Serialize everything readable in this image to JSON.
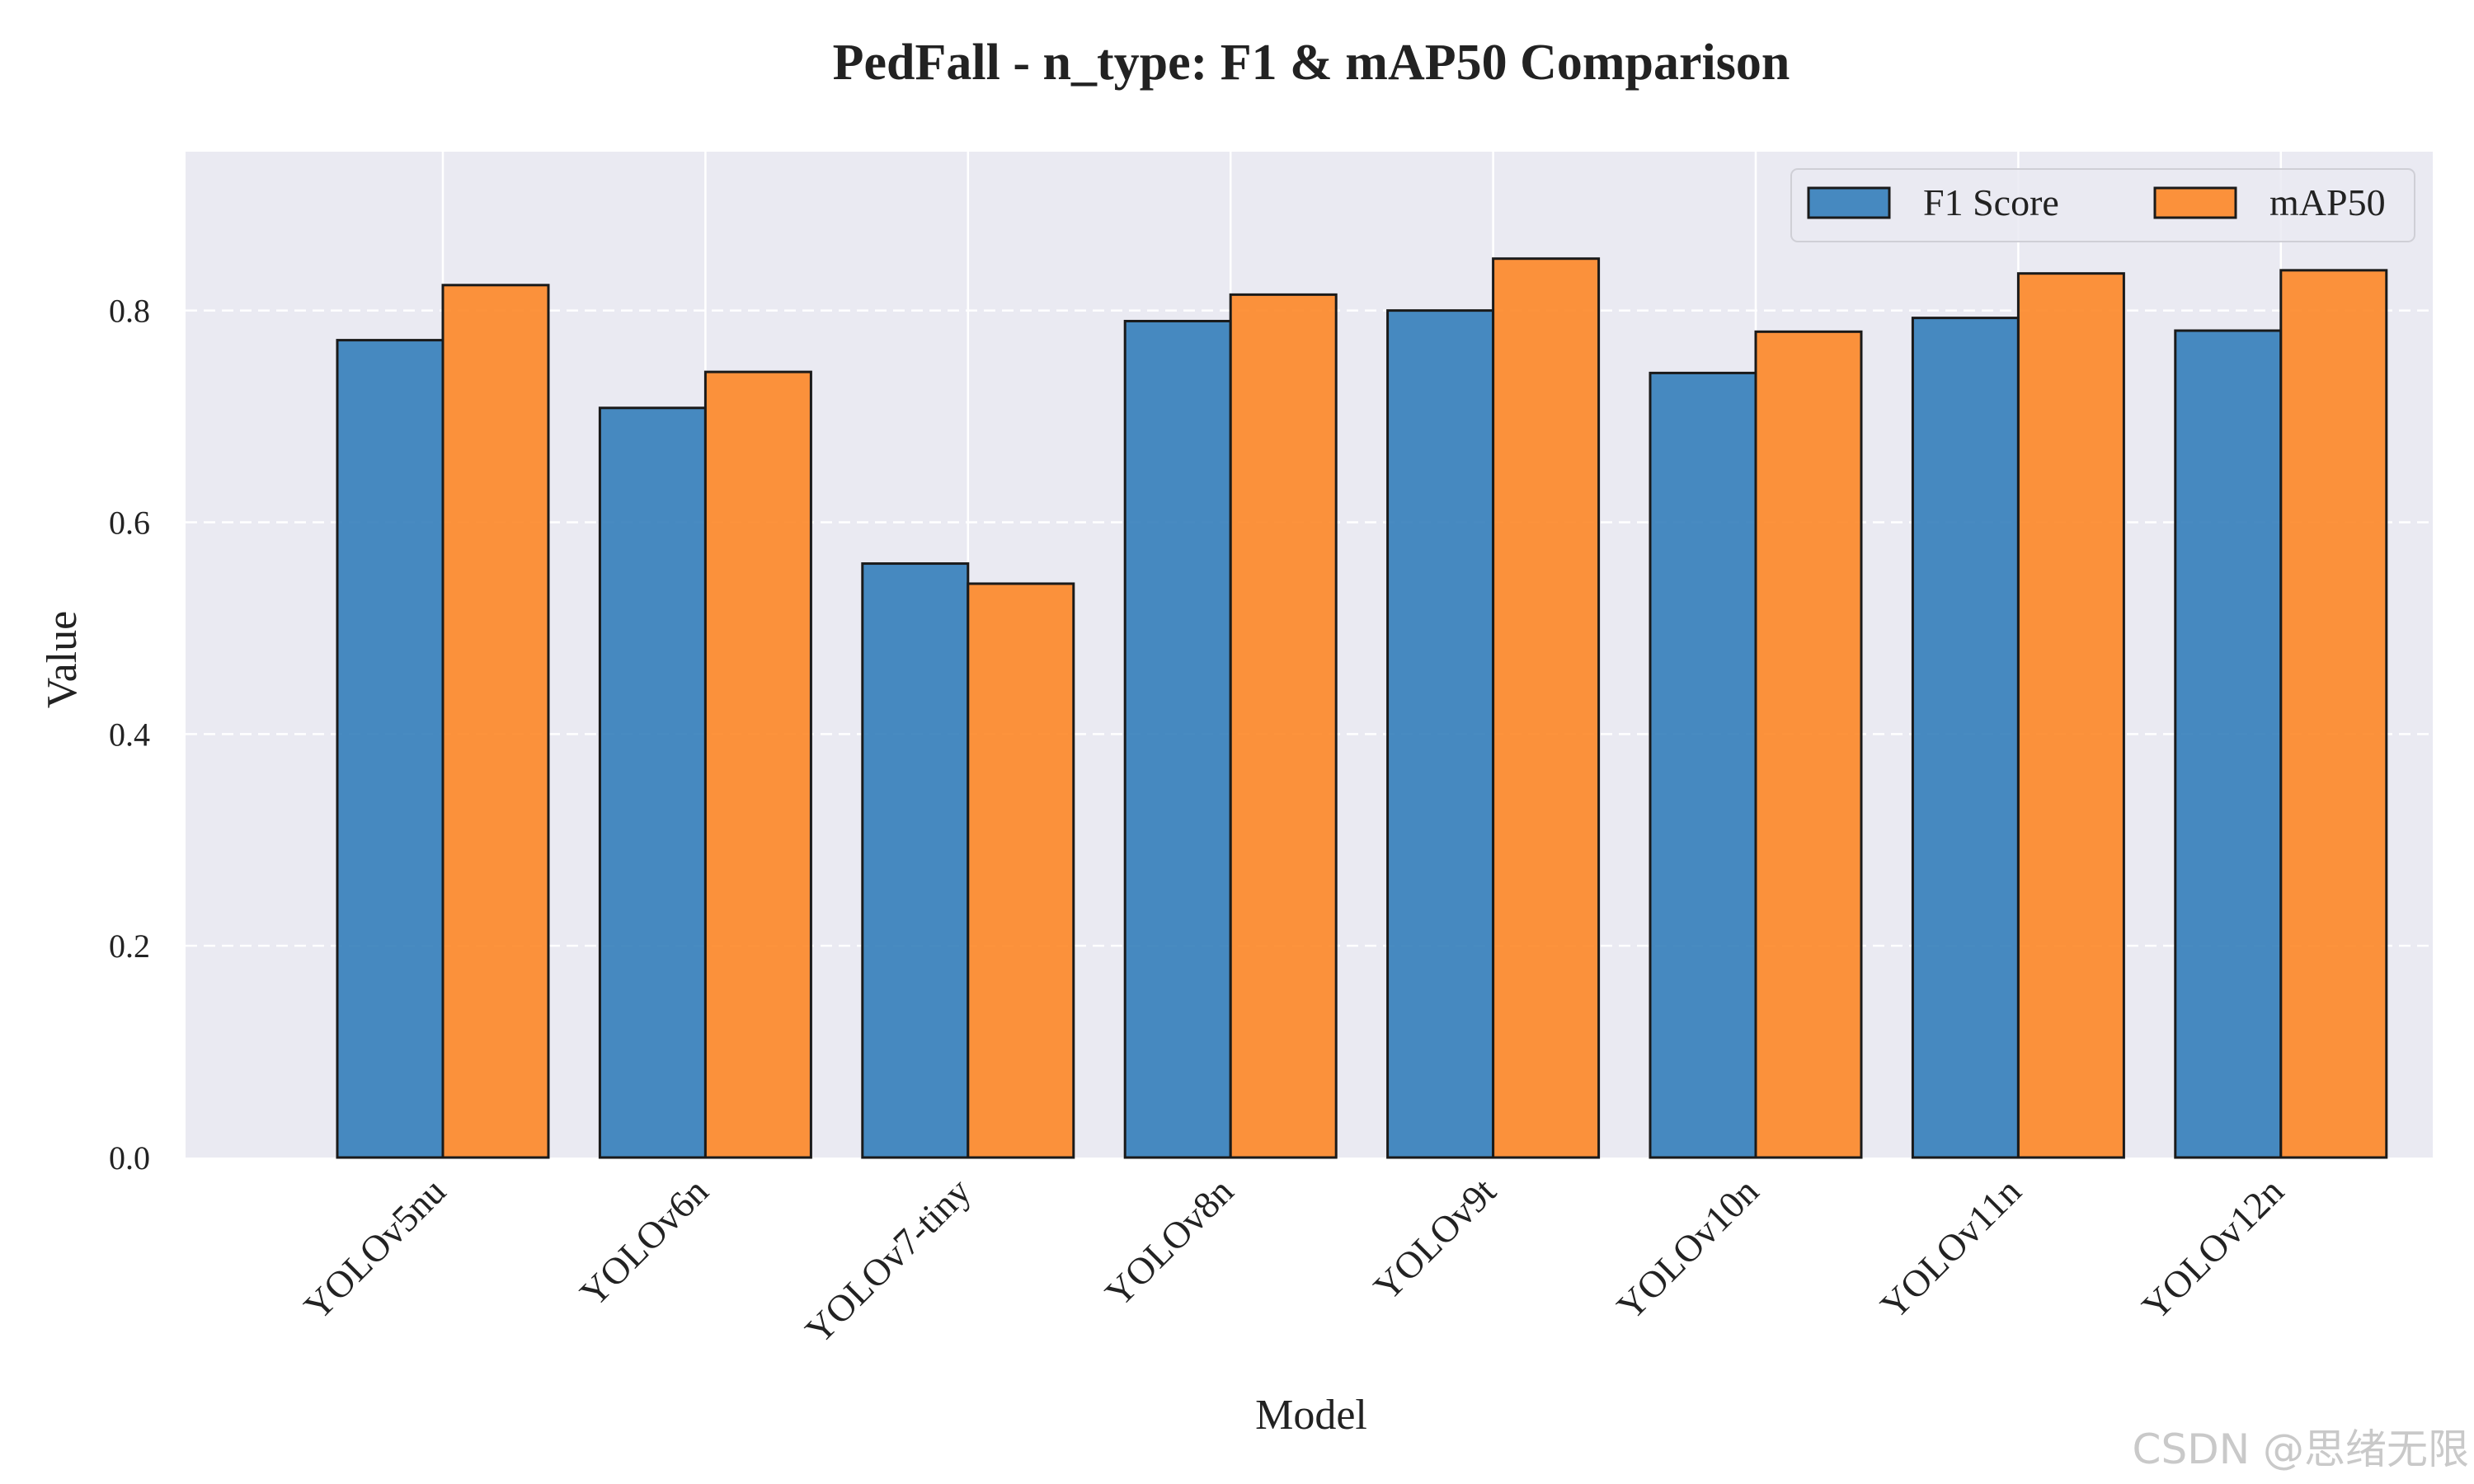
{
  "chart_data": {
    "type": "bar",
    "title": "PedFall - n_type: F1 & mAP50 Comparison",
    "xlabel": "Model",
    "ylabel": "Value",
    "categories": [
      "YOLOv5nu",
      "YOLOv6n",
      "YOLOv7-tiny",
      "YOLOv8n",
      "YOLOv9t",
      "YOLOv10n",
      "YOLOv11n",
      "YOLOv12n"
    ],
    "series": [
      {
        "name": "F1 Score",
        "color": "#2f7bb8",
        "values": [
          0.772,
          0.708,
          0.561,
          0.79,
          0.8,
          0.741,
          0.793,
          0.781
        ]
      },
      {
        "name": "mAP50",
        "color": "#fd8421",
        "values": [
          0.824,
          0.742,
          0.542,
          0.815,
          0.849,
          0.78,
          0.835,
          0.838
        ]
      }
    ],
    "ylim": [
      0,
      0.95
    ],
    "yticks": [
      0.0,
      0.2,
      0.4,
      0.6,
      0.8
    ],
    "ytick_labels": [
      "0.0",
      "0.2",
      "0.4",
      "0.6",
      "0.8"
    ],
    "grid": true,
    "legend_position": "top-right",
    "background": "#eaeaf2",
    "watermark": "CSDN @思绪无限"
  }
}
